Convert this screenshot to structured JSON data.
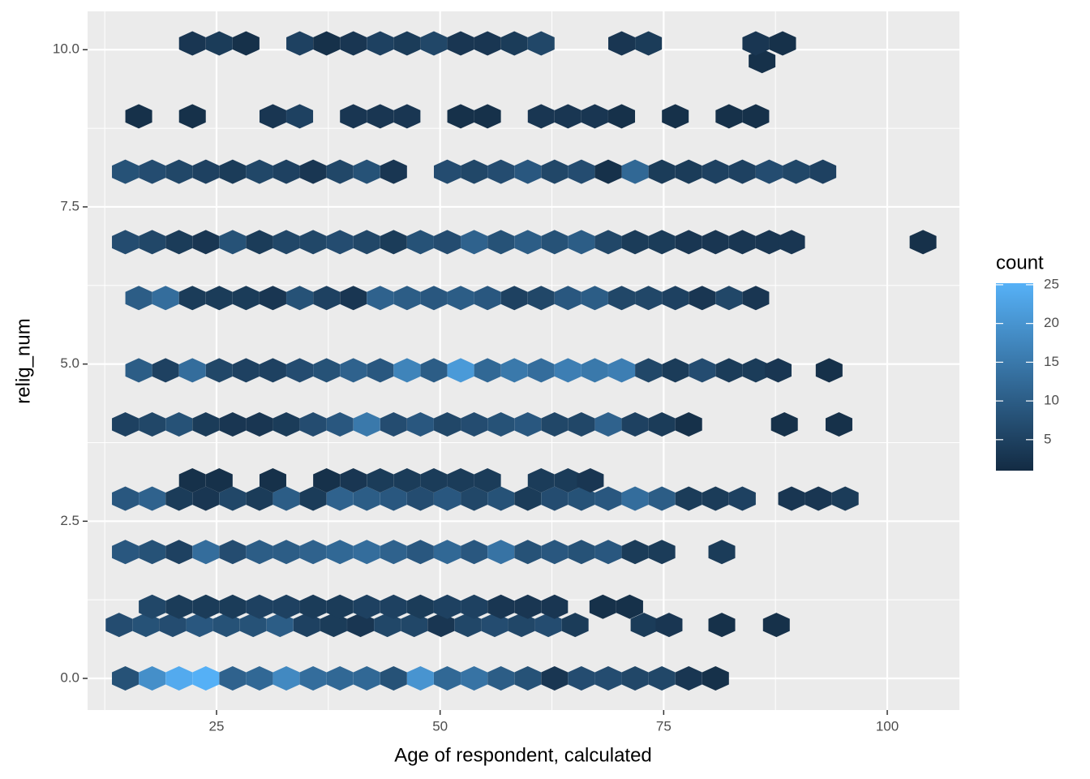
{
  "chart_data": {
    "type": "hexbin",
    "x_label": "Age of respondent, calculated",
    "y_label": "relig_num",
    "legend_title": "count",
    "xlim": [
      10.58,
      108.07
    ],
    "ylim": [
      -0.503,
      10.61
    ],
    "xticks": [
      25,
      50,
      75,
      100
    ],
    "yticks": [
      {
        "value": 0,
        "label": "0.0"
      },
      {
        "value": 2.5,
        "label": "2.5"
      },
      {
        "value": 5,
        "label": "5.0"
      },
      {
        "value": 7.5,
        "label": "7.5"
      },
      {
        "value": 10,
        "label": "10.0"
      }
    ],
    "colorlim": [
      1,
      25.2
    ],
    "colorticks": [
      5,
      10,
      15,
      20,
      25
    ],
    "color_low": "#132B43",
    "color_high": "#56B1F7",
    "grid": true,
    "rows": [
      {
        "y": 0,
        "x": [
          14.8,
          17.8,
          20.8,
          23.8,
          26.8,
          29.8,
          32.8,
          35.8,
          38.8,
          41.8,
          44.8,
          47.8,
          50.8,
          53.8,
          56.8,
          59.8,
          62.8,
          65.8,
          68.8,
          71.8,
          74.8,
          77.8,
          80.8
        ],
        "values": [
          8,
          19,
          24,
          25,
          11,
          12,
          18,
          13,
          12,
          12,
          8,
          20,
          12,
          14,
          10,
          8,
          3,
          7,
          7,
          6,
          6,
          3,
          2
        ]
      },
      {
        "y": 0.85,
        "x": [
          14.1,
          17.1,
          20.1,
          23.1,
          26.1,
          29.1,
          32.1,
          35.1,
          38.1,
          41.1,
          44.1,
          47.1,
          50.1,
          53.1,
          56.1,
          59.1,
          62.1,
          65.1,
          72.8,
          75.6,
          81.5,
          87.6
        ],
        "values": [
          7,
          8,
          7,
          9,
          8,
          8,
          10,
          5,
          4,
          3,
          6,
          6,
          3,
          6,
          7,
          6,
          7,
          4,
          4,
          3,
          2,
          2
        ]
      },
      {
        "y": 1.14,
        "x": [
          17.8,
          20.8,
          23.8,
          26.8,
          29.8,
          32.8,
          35.8,
          38.8,
          41.8,
          44.8,
          47.8,
          50.8,
          53.8,
          56.8,
          59.8,
          62.8,
          68.2,
          71.2
        ],
        "values": [
          6,
          4,
          4,
          4,
          5,
          5,
          4,
          4,
          5,
          5,
          4,
          5,
          5,
          3,
          3,
          3,
          2,
          2
        ]
      },
      {
        "y": 2.01,
        "x": [
          14.8,
          17.8,
          20.8,
          23.8,
          26.8,
          29.8,
          32.8,
          35.8,
          38.8,
          41.8,
          44.8,
          47.8,
          50.8,
          53.8,
          56.8,
          59.8,
          62.8,
          65.8,
          68.8,
          71.8,
          74.8,
          81.5
        ],
        "values": [
          9,
          8,
          5,
          13,
          7,
          10,
          10,
          11,
          12,
          13,
          11,
          9,
          12,
          9,
          14,
          8,
          9,
          8,
          9,
          4,
          4,
          4
        ]
      },
      {
        "y": 2.86,
        "x": [
          14.8,
          17.8,
          20.8,
          23.8,
          26.8,
          29.8,
          32.8,
          35.8,
          38.8,
          41.8,
          44.8,
          47.8,
          50.8,
          53.8,
          56.8,
          59.8,
          62.8,
          65.8,
          68.8,
          71.8,
          74.8,
          77.8,
          80.8,
          83.8,
          89.3,
          92.3,
          95.3
        ],
        "values": [
          9,
          11,
          4,
          3,
          6,
          4,
          10,
          4,
          11,
          10,
          9,
          7,
          9,
          6,
          8,
          4,
          7,
          8,
          9,
          13,
          10,
          4,
          4,
          5,
          3,
          3,
          4
        ]
      },
      {
        "y": 3.15,
        "x": [
          22.3,
          25.3,
          31.3,
          37.3,
          40.3,
          43.3,
          46.3,
          49.3,
          52.3,
          55.3,
          61.3,
          64.3,
          66.8
        ],
        "values": [
          2,
          2,
          2,
          2,
          3,
          4,
          4,
          4,
          4,
          4,
          4,
          4,
          3
        ]
      },
      {
        "y": 4.04,
        "x": [
          14.8,
          17.8,
          20.8,
          23.8,
          26.8,
          29.8,
          32.8,
          35.8,
          38.8,
          41.8,
          44.8,
          47.8,
          50.8,
          53.8,
          56.8,
          59.8,
          62.8,
          65.8,
          68.8,
          71.8,
          74.8,
          77.8,
          88.5,
          94.6
        ],
        "values": [
          5,
          6,
          8,
          4,
          3,
          3,
          4,
          7,
          9,
          15,
          7,
          9,
          6,
          7,
          8,
          9,
          6,
          6,
          11,
          5,
          4,
          2,
          2,
          2
        ]
      },
      {
        "y": 4.9,
        "x": [
          16.3,
          19.3,
          22.3,
          25.3,
          28.3,
          31.3,
          34.3,
          37.3,
          40.3,
          43.3,
          46.3,
          49.3,
          52.3,
          55.3,
          58.3,
          61.3,
          64.3,
          67.3,
          70.3,
          73.3,
          76.3,
          79.3,
          82.3,
          85.3,
          87.8,
          93.5
        ],
        "values": [
          10,
          5,
          13,
          6,
          5,
          5,
          7,
          8,
          11,
          9,
          17,
          10,
          21,
          12,
          15,
          13,
          16,
          15,
          16,
          6,
          4,
          7,
          4,
          4,
          3,
          2
        ]
      },
      {
        "y": 6.05,
        "x": [
          16.3,
          19.3,
          22.3,
          25.3,
          28.3,
          31.3,
          34.3,
          37.3,
          40.3,
          43.3,
          46.3,
          49.3,
          52.3,
          55.3,
          58.3,
          61.3,
          64.3,
          67.3,
          70.3,
          73.3,
          76.3,
          79.3,
          82.3,
          85.3
        ],
        "values": [
          10,
          13,
          4,
          4,
          4,
          3,
          8,
          5,
          3,
          11,
          10,
          9,
          10,
          9,
          5,
          6,
          9,
          10,
          6,
          6,
          5,
          3,
          6,
          3
        ]
      },
      {
        "y": 6.94,
        "x": [
          14.8,
          17.8,
          20.8,
          23.8,
          26.8,
          29.8,
          32.8,
          35.8,
          38.8,
          41.8,
          44.8,
          47.8,
          50.8,
          53.8,
          56.8,
          59.8,
          62.8,
          65.8,
          68.8,
          71.8,
          74.8,
          77.8,
          80.8,
          83.8,
          86.8,
          89.3,
          104.0
        ],
        "values": [
          7,
          6,
          4,
          3,
          8,
          4,
          6,
          6,
          7,
          6,
          4,
          8,
          7,
          11,
          8,
          10,
          8,
          10,
          6,
          4,
          4,
          3,
          3,
          3,
          3,
          3,
          2
        ]
      },
      {
        "y": 8.06,
        "x": [
          14.8,
          17.8,
          20.8,
          23.8,
          26.8,
          29.8,
          32.8,
          35.8,
          38.8,
          41.8,
          44.8,
          50.8,
          53.8,
          56.8,
          59.8,
          62.8,
          65.8,
          68.8,
          71.8,
          74.8,
          77.8,
          80.8,
          83.8,
          86.8,
          89.8,
          92.8
        ],
        "values": [
          8,
          7,
          6,
          5,
          4,
          6,
          5,
          3,
          6,
          8,
          3,
          7,
          6,
          7,
          9,
          6,
          7,
          2,
          12,
          4,
          4,
          5,
          5,
          7,
          6,
          5
        ]
      },
      {
        "y": 8.94,
        "x": [
          16.3,
          22.3,
          31.3,
          34.3,
          40.3,
          43.3,
          46.3,
          52.3,
          55.3,
          61.3,
          64.3,
          67.3,
          70.3,
          76.3,
          82.3,
          85.3
        ],
        "values": [
          2,
          2,
          3,
          5,
          3,
          3,
          3,
          2,
          2,
          3,
          3,
          3,
          2,
          2,
          2,
          2
        ]
      },
      {
        "y": 9.82,
        "x": [
          86.0
        ],
        "values": [
          2
        ]
      },
      {
        "y": 10.1,
        "x": [
          22.3,
          25.3,
          28.3,
          34.3,
          37.3,
          40.3,
          43.3,
          46.3,
          49.3,
          52.3,
          55.3,
          58.3,
          61.3,
          70.3,
          73.3,
          85.3,
          88.3
        ],
        "values": [
          3,
          4,
          2,
          5,
          2,
          3,
          5,
          4,
          6,
          3,
          3,
          4,
          6,
          3,
          4,
          3,
          2
        ]
      }
    ]
  }
}
